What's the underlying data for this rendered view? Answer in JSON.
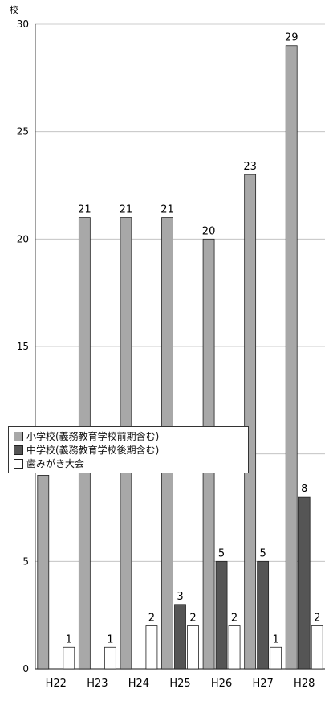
{
  "chart_data": {
    "type": "bar",
    "orientation": "vertical",
    "categories": [
      "H22",
      "H23",
      "H24",
      "H25",
      "H26",
      "H27",
      "H28"
    ],
    "series": [
      {
        "name": "小学校(義務教育学校前期含む)",
        "values": [
          9,
          21,
          21,
          21,
          20,
          23,
          29
        ],
        "color": "#a8a8a8"
      },
      {
        "name": "中学校(義務教育学校後期含む)",
        "values": [
          0,
          0,
          0,
          3,
          5,
          5,
          8
        ],
        "color": "#555555"
      },
      {
        "name": "歯みがき大会",
        "values": [
          1,
          1,
          2,
          2,
          2,
          1,
          2
        ],
        "color": "#ffffff"
      }
    ],
    "ylabel": "校",
    "ylim": [
      0,
      30
    ],
    "yticks": [
      "0",
      "5",
      "10",
      "15",
      "20",
      "25",
      "30"
    ],
    "grid": true,
    "legend": "top-left"
  }
}
